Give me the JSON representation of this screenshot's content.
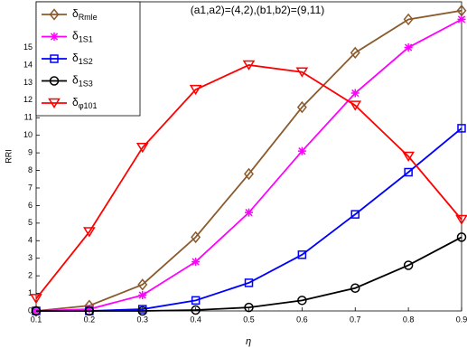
{
  "chart_data": {
    "type": "line",
    "annotation": "(a1,a2)=(4,2),(b1,b2)=(9,11)",
    "x_label": "η",
    "y_label": "RRI",
    "x": [
      0.1,
      0.2,
      0.3,
      0.4,
      0.5,
      0.6,
      0.7,
      0.8,
      0.9
    ],
    "xlim": [
      0.1,
      0.9
    ],
    "xticks": [
      0.1,
      0.2,
      0.3,
      0.4,
      0.5,
      0.6,
      0.7,
      0.8,
      0.9
    ],
    "ylim": [
      0,
      17.6
    ],
    "yticks": [
      0,
      1,
      2,
      3,
      4,
      5,
      6,
      7,
      8,
      9,
      10,
      11,
      12,
      13,
      14,
      15
    ],
    "legend": "upper left",
    "series": [
      {
        "name": "δRmle",
        "color": "#8b5a2b",
        "marker": "diamond",
        "values": [
          0,
          0.3,
          1.5,
          4.2,
          7.8,
          11.6,
          14.7,
          16.6,
          17.1
        ]
      },
      {
        "name": "δ1S1",
        "color": "#ff00ff",
        "marker": "star",
        "values": [
          0,
          0.1,
          0.9,
          2.8,
          5.6,
          9.1,
          12.4,
          15.0,
          16.6
        ]
      },
      {
        "name": "δ1S2",
        "color": "#0000ff",
        "marker": "square",
        "values": [
          0,
          0,
          0.1,
          0.6,
          1.6,
          3.2,
          5.5,
          7.9,
          10.4
        ]
      },
      {
        "name": "δ1S3",
        "color": "#000000",
        "marker": "circle",
        "values": [
          0,
          0,
          0,
          0.05,
          0.2,
          0.6,
          1.3,
          2.6,
          4.2
        ]
      },
      {
        "name": "δφ101",
        "color": "#ff0000",
        "marker": "triangle-down",
        "values": [
          0.7,
          4.5,
          9.3,
          12.6,
          14.0,
          13.6,
          11.7,
          8.8,
          5.2
        ]
      }
    ]
  }
}
